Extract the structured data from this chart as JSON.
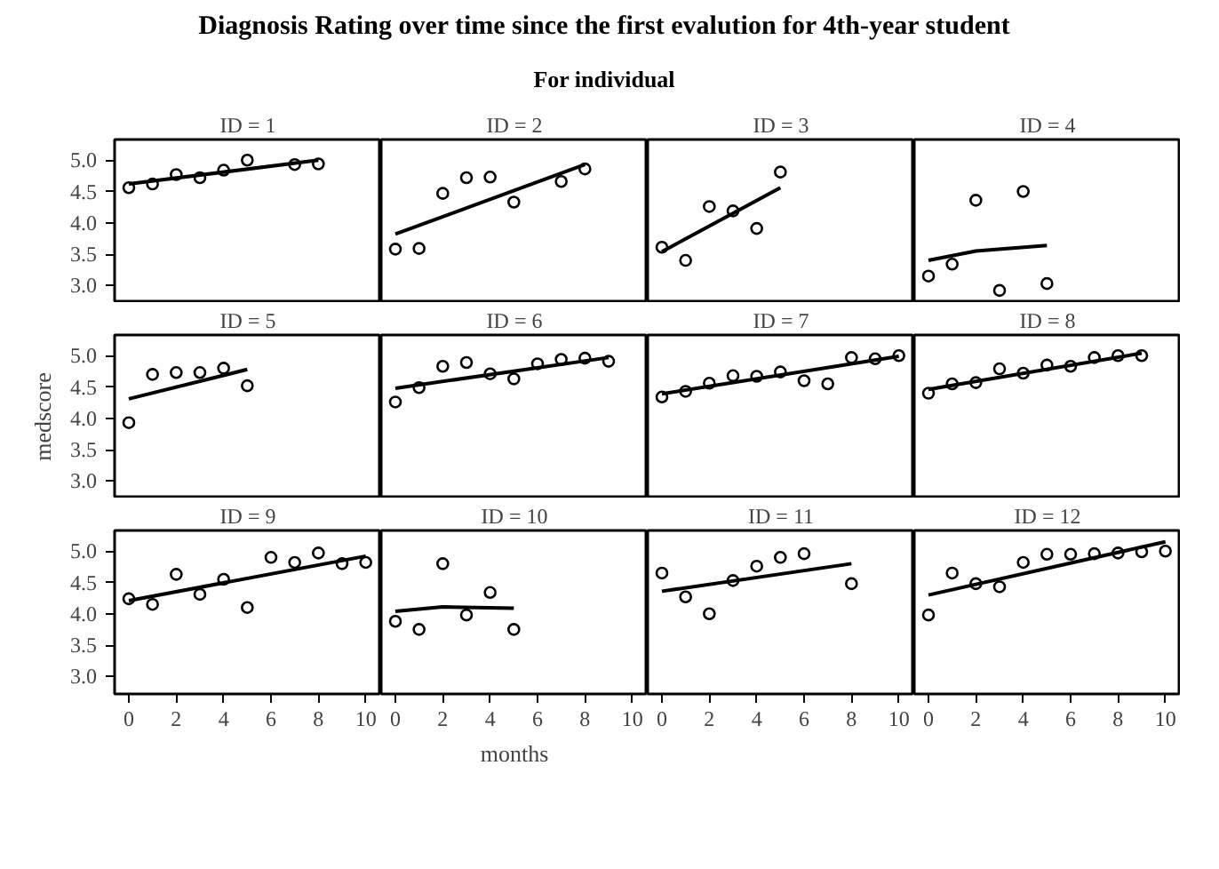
{
  "chart_data": [
    {
      "type": "scatter",
      "title": "ID = 1",
      "annotations": [
        "Diagnosis Rating over time since the first evalution for 4th-year student",
        "For individual"
      ],
      "xlim": [
        -0.6,
        10.65
      ],
      "ylim": [
        2.72,
        5.33
      ],
      "yticks": [
        {
          "value": 3,
          "label": "3.0"
        },
        {
          "value": 3.5,
          "label": "3.5"
        },
        {
          "value": 4,
          "label": "4.0"
        },
        {
          "value": 4.5,
          "label": "4.5"
        },
        {
          "value": 5,
          "label": "5.0"
        }
      ],
      "tick_labels": "y",
      "series": [
        {
          "marker": "circle",
          "color": "#000000",
          "x": [
            0,
            1,
            2,
            3,
            4,
            5,
            7,
            8
          ],
          "values": [
            4.56,
            4.62,
            4.77,
            4.72,
            4.84,
            5.0,
            4.93,
            4.94
          ]
        },
        {
          "type": "line",
          "color": "#000000",
          "x": [
            0,
            8
          ],
          "values": [
            4.62,
            5.0
          ]
        }
      ]
    },
    {
      "type": "scatter",
      "title": "ID = 2",
      "xlim": [
        -0.6,
        10.65
      ],
      "ylim": [
        2.72,
        5.33
      ],
      "tick_labels": false,
      "series": [
        {
          "marker": "circle",
          "color": "#000000",
          "x": [
            0,
            1,
            2,
            3,
            4,
            5,
            7,
            8
          ],
          "values": [
            3.58,
            3.59,
            4.47,
            4.72,
            4.73,
            4.33,
            4.66,
            4.86
          ]
        },
        {
          "type": "line",
          "color": "#000000",
          "x": [
            0,
            8
          ],
          "values": [
            3.82,
            4.93
          ]
        }
      ]
    },
    {
      "type": "scatter",
      "title": "ID = 3",
      "xlim": [
        -0.6,
        10.65
      ],
      "ylim": [
        2.72,
        5.33
      ],
      "tick_labels": false,
      "series": [
        {
          "marker": "circle",
          "color": "#000000",
          "x": [
            0,
            1,
            2,
            3,
            4,
            5
          ],
          "values": [
            3.61,
            3.4,
            4.26,
            4.19,
            3.91,
            4.81
          ]
        },
        {
          "type": "line",
          "color": "#000000",
          "x": [
            0,
            5
          ],
          "values": [
            3.54,
            4.56
          ]
        }
      ]
    },
    {
      "type": "scatter",
      "title": "ID = 4",
      "xlim": [
        -0.6,
        10.65
      ],
      "ylim": [
        2.72,
        5.33
      ],
      "tick_labels": false,
      "series": [
        {
          "marker": "circle",
          "color": "#000000",
          "x": [
            0,
            1,
            2,
            3,
            4,
            5
          ],
          "values": [
            3.15,
            3.34,
            4.36,
            2.92,
            4.5,
            3.03
          ]
        },
        {
          "type": "line",
          "color": "#000000",
          "x": [
            0,
            2,
            5
          ],
          "values": [
            3.4,
            3.55,
            3.64
          ]
        }
      ]
    },
    {
      "type": "scatter",
      "title": "ID = 5",
      "ylabel": "medscore",
      "xlim": [
        -0.6,
        10.65
      ],
      "ylim": [
        2.72,
        5.33
      ],
      "yticks": [
        {
          "value": 3,
          "label": "3.0"
        },
        {
          "value": 3.5,
          "label": "3.5"
        },
        {
          "value": 4,
          "label": "4.0"
        },
        {
          "value": 4.5,
          "label": "4.5"
        },
        {
          "value": 5,
          "label": "5.0"
        }
      ],
      "tick_labels": "y",
      "series": [
        {
          "marker": "circle",
          "color": "#000000",
          "x": [
            0,
            1,
            2,
            3,
            4,
            5
          ],
          "values": [
            3.93,
            4.7,
            4.73,
            4.73,
            4.8,
            4.52
          ]
        },
        {
          "type": "line",
          "color": "#000000",
          "x": [
            0,
            5
          ],
          "values": [
            4.31,
            4.78
          ]
        }
      ]
    },
    {
      "type": "scatter",
      "title": "ID = 6",
      "xlim": [
        -0.6,
        10.65
      ],
      "ylim": [
        2.72,
        5.33
      ],
      "tick_labels": false,
      "series": [
        {
          "marker": "circle",
          "color": "#000000",
          "x": [
            0,
            1,
            2,
            3,
            4,
            5,
            6,
            7,
            8,
            9
          ],
          "values": [
            4.26,
            4.49,
            4.83,
            4.89,
            4.71,
            4.63,
            4.87,
            4.94,
            4.96,
            4.91
          ]
        },
        {
          "type": "line",
          "color": "#000000",
          "x": [
            0,
            9
          ],
          "values": [
            4.48,
            4.97
          ]
        }
      ]
    },
    {
      "type": "scatter",
      "title": "ID = 7",
      "xlim": [
        -0.6,
        10.65
      ],
      "ylim": [
        2.72,
        5.33
      ],
      "tick_labels": false,
      "series": [
        {
          "marker": "circle",
          "color": "#000000",
          "x": [
            0,
            1,
            2,
            3,
            4,
            5,
            6,
            7,
            8,
            9,
            10
          ],
          "values": [
            4.34,
            4.43,
            4.56,
            4.68,
            4.67,
            4.74,
            4.6,
            4.55,
            4.97,
            4.95,
            5.0
          ]
        },
        {
          "type": "line",
          "color": "#000000",
          "x": [
            0,
            10
          ],
          "values": [
            4.39,
            4.99
          ]
        }
      ]
    },
    {
      "type": "scatter",
      "title": "ID = 8",
      "xlim": [
        -0.6,
        10.65
      ],
      "ylim": [
        2.72,
        5.33
      ],
      "tick_labels": false,
      "series": [
        {
          "marker": "circle",
          "color": "#000000",
          "x": [
            0,
            1,
            2,
            3,
            4,
            5,
            6,
            7,
            8,
            9
          ],
          "values": [
            4.4,
            4.55,
            4.57,
            4.79,
            4.72,
            4.85,
            4.83,
            4.97,
            5.0,
            5.0
          ]
        },
        {
          "type": "line",
          "color": "#000000",
          "x": [
            0,
            9
          ],
          "values": [
            4.46,
            5.04
          ]
        }
      ]
    },
    {
      "type": "scatter",
      "title": "ID = 9",
      "xlim": [
        -0.6,
        10.65
      ],
      "ylim": [
        2.72,
        5.33
      ],
      "xticks": [
        0,
        2,
        4,
        6,
        8,
        10
      ],
      "yticks": [
        {
          "value": 3,
          "label": "3.0"
        },
        {
          "value": 3.5,
          "label": "3.5"
        },
        {
          "value": 4,
          "label": "4.0"
        },
        {
          "value": 4.5,
          "label": "4.5"
        },
        {
          "value": 5,
          "label": "5.0"
        }
      ],
      "series": [
        {
          "marker": "circle",
          "color": "#000000",
          "x": [
            0,
            1,
            2,
            3,
            4,
            5,
            6,
            7,
            8,
            9,
            10
          ],
          "values": [
            4.24,
            4.15,
            4.63,
            4.31,
            4.55,
            4.1,
            4.9,
            4.82,
            4.97,
            4.8,
            4.82
          ]
        },
        {
          "type": "line",
          "color": "#000000",
          "x": [
            0,
            10
          ],
          "values": [
            4.21,
            4.92
          ]
        }
      ]
    },
    {
      "type": "scatter",
      "title": "ID = 10",
      "xlabel": "months",
      "xlim": [
        -0.6,
        10.65
      ],
      "ylim": [
        2.72,
        5.33
      ],
      "xticks": [
        0,
        2,
        4,
        6,
        8,
        10
      ],
      "tick_labels": "x",
      "series": [
        {
          "marker": "circle",
          "color": "#000000",
          "x": [
            0,
            1,
            2,
            3,
            4,
            5
          ],
          "values": [
            3.88,
            3.75,
            4.8,
            3.98,
            4.34,
            3.75
          ]
        },
        {
          "type": "line",
          "color": "#000000",
          "x": [
            0,
            2,
            5
          ],
          "values": [
            4.04,
            4.11,
            4.09
          ]
        }
      ]
    },
    {
      "type": "scatter",
      "title": "ID = 11",
      "xlim": [
        -0.6,
        10.65
      ],
      "ylim": [
        2.72,
        5.33
      ],
      "xticks": [
        0,
        2,
        4,
        6,
        8,
        10
      ],
      "tick_labels": "x",
      "series": [
        {
          "marker": "circle",
          "color": "#000000",
          "x": [
            0,
            1,
            2,
            3,
            4,
            5,
            6,
            8
          ],
          "values": [
            4.65,
            4.27,
            4.0,
            4.53,
            4.76,
            4.9,
            4.96,
            4.48
          ]
        },
        {
          "type": "line",
          "color": "#000000",
          "x": [
            0,
            8
          ],
          "values": [
            4.36,
            4.8
          ]
        }
      ]
    },
    {
      "type": "scatter",
      "title": "ID = 12",
      "xlim": [
        -0.6,
        10.65
      ],
      "ylim": [
        2.72,
        5.33
      ],
      "xticks": [
        0,
        2,
        4,
        6,
        8,
        10
      ],
      "tick_labels": "x",
      "series": [
        {
          "marker": "circle",
          "color": "#000000",
          "x": [
            0,
            1,
            2,
            3,
            4,
            5,
            6,
            7,
            8,
            9,
            10
          ],
          "values": [
            3.98,
            4.65,
            4.48,
            4.43,
            4.82,
            4.95,
            4.95,
            4.96,
            4.97,
            4.99,
            5.0
          ]
        },
        {
          "type": "line",
          "color": "#000000",
          "x": [
            0,
            10
          ],
          "values": [
            4.3,
            5.15
          ]
        }
      ]
    }
  ]
}
